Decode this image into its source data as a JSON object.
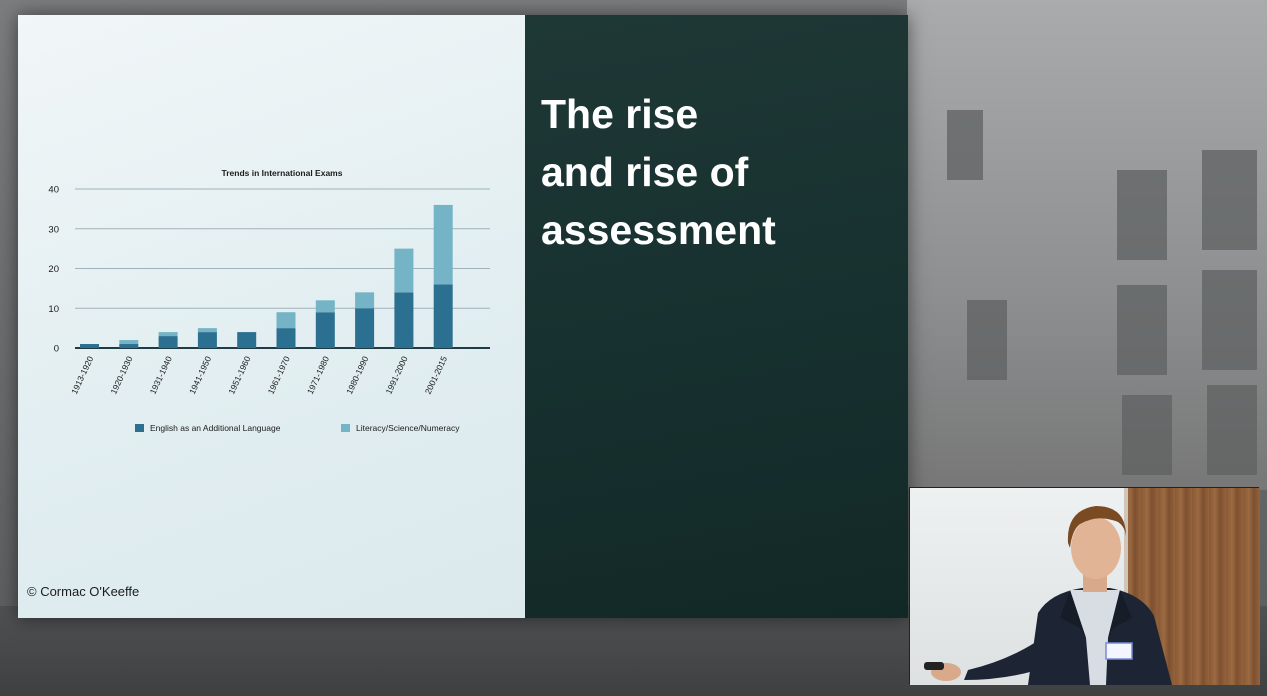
{
  "slide": {
    "title_lines": [
      "The rise",
      "and rise of",
      "assessment"
    ],
    "copyright": "© Cormac O'Keeffe"
  },
  "colors": {
    "series_dark": "#2b6f91",
    "series_light": "#74b4c6",
    "slide_right_bg": "#173130",
    "axis": "#1f3b44"
  },
  "webcam": {
    "badge_visible": true
  },
  "chart_data": {
    "type": "bar",
    "stacked": true,
    "title": "Trends in International Exams",
    "categories": [
      "1913-1920",
      "1920-1930",
      "1931-1940",
      "1941-1950",
      "1951-1960",
      "1961-1970",
      "1971-1980",
      "1980-1990",
      "1991-2000",
      "2001-2015"
    ],
    "series": [
      {
        "name": "English as an Additional Language",
        "values": [
          1,
          1,
          3,
          4,
          4,
          5,
          9,
          10,
          14,
          16
        ],
        "color": "#2b6f91"
      },
      {
        "name": "Literacy/Science/Numeracy",
        "values": [
          0,
          1,
          1,
          1,
          0,
          4,
          3,
          4,
          11,
          20
        ],
        "color": "#74b4c6"
      }
    ],
    "y_ticks": [
      "0",
      "10",
      "20",
      "30",
      "40"
    ],
    "ylim": [
      0,
      40
    ],
    "grid": true,
    "legend": "bottom"
  }
}
